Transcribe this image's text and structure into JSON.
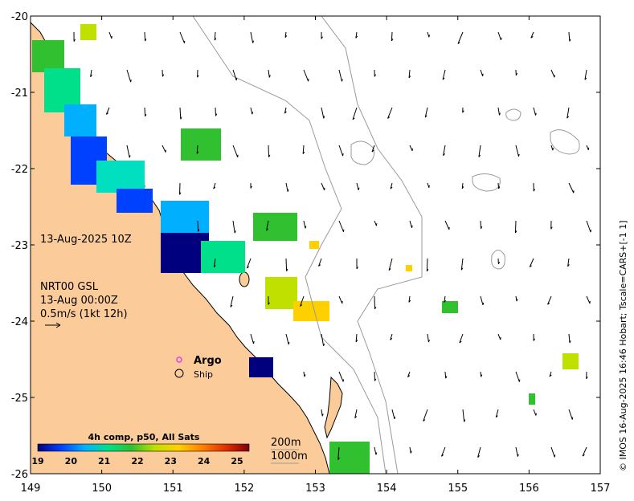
{
  "map": {
    "lon_range": [
      149,
      157
    ],
    "lat_range": [
      -26,
      -20
    ],
    "x_ticks": [
      "149",
      "150",
      "151",
      "152",
      "153",
      "154",
      "155",
      "156",
      "157"
    ],
    "y_ticks": [
      "-20",
      "-21",
      "-22",
      "-23",
      "-24",
      "-25",
      "-26"
    ],
    "land_color": "#fbcc9a",
    "coast_color": "#000000",
    "isobath_color": "#9a9a9a"
  },
  "annotations": {
    "date_label": "13-Aug-2025 10Z",
    "current_model": "NRT00 GSL",
    "current_time": "13-Aug 00:00Z",
    "current_scale": "0.5m/s (1kt 12h)"
  },
  "legend": {
    "argo_label": "Argo",
    "ship_label": "Ship",
    "argo_color": "#e83ee8"
  },
  "isobath_labels": {
    "shallow": "200m",
    "deep": "1000m"
  },
  "colorbar": {
    "title": "4h comp, p50, All Sats",
    "ticks": [
      "19",
      "20",
      "21",
      "22",
      "23",
      "24",
      "25"
    ],
    "colors": [
      "#00007f",
      "#0040ff",
      "#00b0ff",
      "#00e08a",
      "#30c030",
      "#c0e000",
      "#ffd000",
      "#ff8000",
      "#e03000",
      "#800000"
    ]
  },
  "credit": "© IMOS 16-Aug-2025 16:46 Hobart; Tscale=CARS+[-1 1]"
}
